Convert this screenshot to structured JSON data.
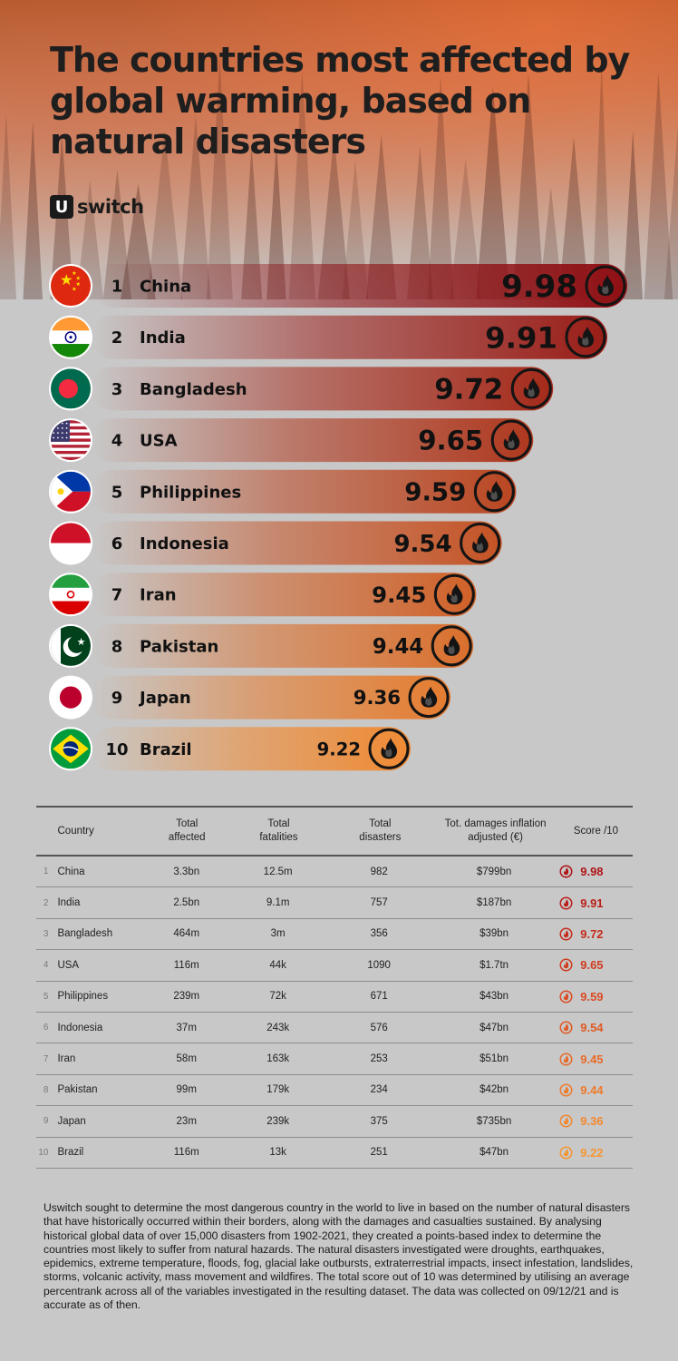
{
  "title": "The countries most affected by global warming, based on natural disasters",
  "brand": {
    "mark": "U",
    "name": "switch"
  },
  "colors": {
    "background": "#c8c8c8",
    "bar_top": "#8f0f13",
    "bar_bottom": "#f08a33",
    "text": "#111111"
  },
  "chart_data": {
    "type": "bar",
    "orientation": "horizontal",
    "categories": [
      "China",
      "India",
      "Bangladesh",
      "USA",
      "Philippines",
      "Indonesia",
      "Iran",
      "Pakistan",
      "Japan",
      "Brazil"
    ],
    "ranks": [
      "1",
      "2",
      "3",
      "4",
      "5",
      "6",
      "7",
      "8",
      "9",
      "10"
    ],
    "values": [
      9.98,
      9.91,
      9.72,
      9.65,
      9.59,
      9.54,
      9.45,
      9.44,
      9.36,
      9.22
    ],
    "value_labels": [
      "9.98",
      "9.91",
      "9.72",
      "9.65",
      "9.59",
      "9.54",
      "9.45",
      "9.44",
      "9.36",
      "9.22"
    ],
    "flags": [
      "china-flag-icon",
      "india-flag-icon",
      "bangladesh-flag-icon",
      "usa-flag-icon",
      "philippines-flag-icon",
      "indonesia-flag-icon",
      "iran-flag-icon",
      "pakistan-flag-icon",
      "japan-flag-icon",
      "brazil-flag-icon"
    ],
    "end_icon": "fire-icon",
    "title": "",
    "xlabel": "",
    "ylabel": "",
    "grid": false,
    "legend": "none"
  },
  "table": {
    "headers": {
      "country": "Country",
      "affected": [
        "Total",
        "affected"
      ],
      "fatalities": [
        "Total",
        "fatalities"
      ],
      "disasters": [
        "Total",
        "disasters"
      ],
      "damages": [
        "Tot. damages inflation",
        "adjusted (€)"
      ],
      "score": "Score /10"
    },
    "rows": [
      {
        "rank": "1",
        "country": "China",
        "affected": "3.3bn",
        "fatalities": "12.5m",
        "disasters": "982",
        "damages": "$799bn",
        "score": "9.98",
        "color": "#b01416"
      },
      {
        "rank": "2",
        "country": "India",
        "affected": "2.5bn",
        "fatalities": "9.1m",
        "disasters": "757",
        "damages": "$187bn",
        "score": "9.91",
        "color": "#bb1f18"
      },
      {
        "rank": "3",
        "country": "Bangladesh",
        "affected": "464m",
        "fatalities": "3m",
        "disasters": "356",
        "damages": "$39bn",
        "score": "9.72",
        "color": "#c62d1c"
      },
      {
        "rank": "4",
        "country": "USA",
        "affected": "116m",
        "fatalities": "44k",
        "disasters": "1090",
        "damages": "$1.7tn",
        "score": "9.65",
        "color": "#d03c1f"
      },
      {
        "rank": "5",
        "country": "Philippines",
        "affected": "239m",
        "fatalities": "72k",
        "disasters": "671",
        "damages": "$43bn",
        "score": "9.59",
        "color": "#d94b22"
      },
      {
        "rank": "6",
        "country": "Indonesia",
        "affected": "37m",
        "fatalities": "243k",
        "disasters": "576",
        "damages": "$47bn",
        "score": "9.54",
        "color": "#e15a25"
      },
      {
        "rank": "7",
        "country": "Iran",
        "affected": "58m",
        "fatalities": "163k",
        "disasters": "253",
        "damages": "$51bn",
        "score": "9.45",
        "color": "#e86a28"
      },
      {
        "rank": "8",
        "country": "Pakistan",
        "affected": "99m",
        "fatalities": "179k",
        "disasters": "234",
        "damages": "$42bn",
        "score": "9.44",
        "color": "#ee7a2b"
      },
      {
        "rank": "9",
        "country": "Japan",
        "affected": "23m",
        "fatalities": "239k",
        "disasters": "375",
        "damages": "$735bn",
        "score": "9.36",
        "color": "#f2882f"
      },
      {
        "rank": "10",
        "country": "Brazil",
        "affected": "116m",
        "fatalities": "13k",
        "disasters": "251",
        "damages": "$47bn",
        "score": "9.22",
        "color": "#f59632"
      }
    ]
  },
  "footnote": "Uswitch sought to determine the most dangerous country in the world to live in based on the number of natural disasters that have historically occurred within their borders, along with the damages and casualties sustained. By analysing historical global data of over 15,000 disasters from 1902-2021, they created a points-based index to determine the countries most likely to suffer from natural hazards. The natural disasters investigated were droughts, earthquakes, epidemics, extreme temperature, floods, fog, glacial lake outbursts, extraterrestrial impacts, insect infestation, landslides, storms, volcanic activity, mass movement and wildfires. The total score out of 10 was determined by utilising an average percentrank across all of the variables investigated in the resulting dataset. The data was collected on 09/12/21 and is accurate as of then."
}
